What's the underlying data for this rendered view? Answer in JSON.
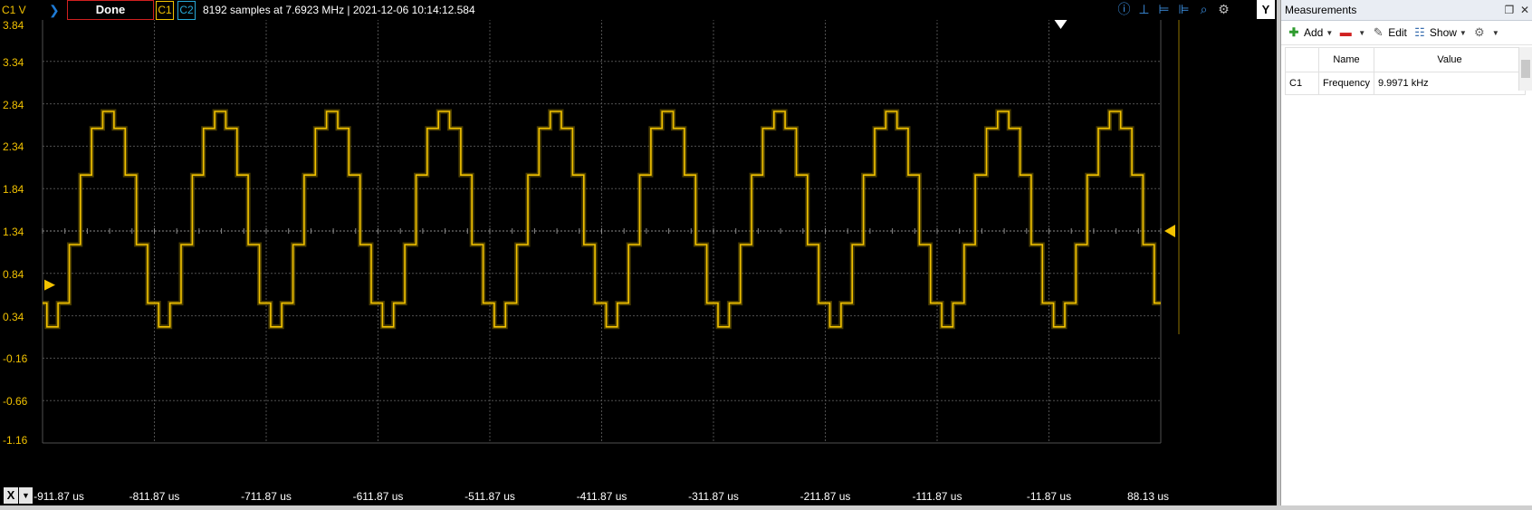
{
  "toolbar": {
    "channel_label": "C1 V",
    "done_label": "Done",
    "c1_label": "C1",
    "c2_label": "C2",
    "info_text": "8192 samples at 7.6923 MHz | 2021-12-06 10:14:12.584",
    "y_label": "Y",
    "icons": [
      "zoom-info-icon",
      "cursor-marker-icon",
      "horizontal-cursor-icon",
      "vertical-cursor-icon",
      "zoom-icon",
      "settings-icon"
    ]
  },
  "xaxis": {
    "x_button_label": "X",
    "ticks": [
      "-911.87 us",
      "-811.87 us",
      "-711.87 us",
      "-611.87 us",
      "-511.87 us",
      "-411.87 us",
      "-311.87 us",
      "-211.87 us",
      "-111.87 us",
      "-11.87 us",
      "88.13 us"
    ]
  },
  "yaxis": {
    "ticks": [
      "3.84",
      "3.34",
      "2.84",
      "2.34",
      "1.84",
      "1.34",
      "0.84",
      "0.34",
      "-0.16",
      "-0.66",
      "-1.16"
    ]
  },
  "chart_data": {
    "type": "line",
    "title": "",
    "xlabel": "",
    "ylabel": "C1 V",
    "xlim": [
      -911.87,
      88.13
    ],
    "ylim": [
      -1.16,
      3.84
    ],
    "grid": true,
    "series": [
      {
        "name": "C1",
        "color": "#f2c200",
        "frequency_khz": 9.9971,
        "step_levels_v": [
          0.21,
          0.49,
          1.18,
          2.0,
          2.55,
          2.75,
          2.55,
          2.0,
          1.18,
          0.49
        ],
        "period_us": 100.03,
        "first_rising_edge_us": -908.0
      }
    ]
  },
  "colors": {
    "trace": "#f2c200",
    "c2": "#27a8d8",
    "grid": "#505050",
    "background": "#000000"
  },
  "panel": {
    "title": "Measurements",
    "add_label": "Add",
    "edit_label": "Edit",
    "show_label": "Show",
    "columns": [
      "",
      "Name",
      "Value"
    ],
    "rows": [
      {
        "channel": "C1",
        "name": "Frequency",
        "value": "9.9971 kHz"
      }
    ]
  }
}
